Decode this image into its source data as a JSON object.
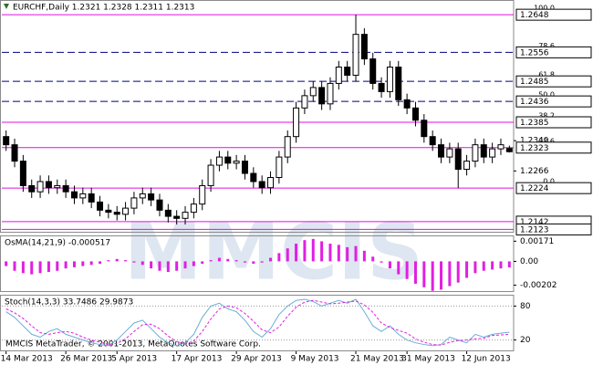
{
  "chart_data": [
    {
      "type": "candlestick",
      "title": "EURCHF,Daily 1.2321 1.2328 1.2311 1.2313",
      "up_color": "#ffffff",
      "down_color": "#000000",
      "open": [
        1.235,
        1.233,
        1.229,
        1.223,
        1.2215,
        1.224,
        1.2225,
        1.223,
        1.2215,
        1.22,
        1.221,
        1.219,
        1.217,
        1.2165,
        1.216,
        1.2175,
        1.22,
        1.221,
        1.2195,
        1.217,
        1.2155,
        1.215,
        1.2165,
        1.2185,
        1.223,
        1.228,
        1.23,
        1.2285,
        1.229,
        1.226,
        1.224,
        1.2225,
        1.225,
        1.23,
        1.235,
        1.242,
        1.245,
        1.247,
        1.243,
        1.248,
        1.252,
        1.25,
        1.26,
        1.254,
        1.248,
        1.246,
        1.252,
        1.244,
        1.242,
        1.239,
        1.235,
        1.233,
        1.23,
        1.232,
        1.227,
        1.229,
        1.233,
        1.23,
        1.232,
        1.2321
      ],
      "high": [
        1.2365,
        1.2345,
        1.2305,
        1.2245,
        1.2255,
        1.2255,
        1.2245,
        1.2245,
        1.223,
        1.2225,
        1.2225,
        1.2205,
        1.2185,
        1.218,
        1.219,
        1.2215,
        1.2225,
        1.2225,
        1.221,
        1.2185,
        1.217,
        1.218,
        1.22,
        1.2245,
        1.2295,
        1.2315,
        1.2315,
        1.2305,
        1.2305,
        1.2275,
        1.2255,
        1.2265,
        1.2315,
        1.2365,
        1.2435,
        1.2465,
        1.2485,
        1.2485,
        1.2495,
        1.2535,
        1.2535,
        1.2648,
        1.2615,
        1.2555,
        1.2495,
        1.2535,
        1.2535,
        1.2455,
        1.2435,
        1.2405,
        1.2365,
        1.2345,
        1.2335,
        1.2335,
        1.2305,
        1.2345,
        1.2345,
        1.2335,
        1.2345,
        1.2328
      ],
      "low": [
        1.2315,
        1.2275,
        1.2215,
        1.22,
        1.22,
        1.221,
        1.221,
        1.22,
        1.2185,
        1.2185,
        1.2175,
        1.2155,
        1.215,
        1.2145,
        1.2145,
        1.216,
        1.2185,
        1.218,
        1.2155,
        1.214,
        1.2135,
        1.2135,
        1.215,
        1.217,
        1.2215,
        1.2265,
        1.227,
        1.227,
        1.2245,
        1.2225,
        1.221,
        1.221,
        1.2235,
        1.2285,
        1.2335,
        1.2405,
        1.2435,
        1.2415,
        1.2415,
        1.2465,
        1.2485,
        1.2485,
        1.2525,
        1.2465,
        1.2445,
        1.2445,
        1.2425,
        1.2405,
        1.2375,
        1.2335,
        1.2315,
        1.2285,
        1.2285,
        1.2224,
        1.2255,
        1.2275,
        1.2285,
        1.2285,
        1.2305,
        1.2311
      ],
      "close": [
        1.233,
        1.229,
        1.223,
        1.2215,
        1.224,
        1.2225,
        1.223,
        1.2215,
        1.22,
        1.221,
        1.219,
        1.217,
        1.2165,
        1.216,
        1.2175,
        1.22,
        1.221,
        1.2195,
        1.217,
        1.2155,
        1.215,
        1.2165,
        1.2185,
        1.223,
        1.228,
        1.23,
        1.2285,
        1.229,
        1.226,
        1.224,
        1.2225,
        1.225,
        1.23,
        1.235,
        1.242,
        1.245,
        1.247,
        1.243,
        1.248,
        1.252,
        1.25,
        1.26,
        1.254,
        1.248,
        1.246,
        1.252,
        1.244,
        1.242,
        1.239,
        1.235,
        1.233,
        1.23,
        1.232,
        1.227,
        1.229,
        1.233,
        1.23,
        1.232,
        1.233,
        1.2313
      ],
      "levels": [
        {
          "price": 1.2648,
          "fib": "100.0",
          "color": "#e010e0",
          "dashed": false
        },
        {
          "price": 1.2556,
          "fib": "78.6",
          "color": "#000080",
          "dashed": true
        },
        {
          "price": 1.2485,
          "fib": "61.8",
          "color": "#000080",
          "dashed": true
        },
        {
          "price": 1.2436,
          "fib": "50.0",
          "color": "#000080",
          "dashed": true
        },
        {
          "price": 1.2385,
          "fib": "38.2",
          "color": "#e010e0",
          "dashed": false
        },
        {
          "price": 1.2323,
          "fib": "23.6",
          "color": "#e010e0",
          "dashed": false
        },
        {
          "price": 1.2224,
          "fib": "0.0",
          "color": "#e010e0",
          "dashed": false
        },
        {
          "price": 1.2142,
          "color": "#e010e0",
          "dashed": false
        },
        {
          "price": 1.2123,
          "color": "#e010e0",
          "dashed": false
        }
      ],
      "ylim": [
        1.2115,
        1.2684
      ],
      "yticks": [
        {
          "value": 1.234,
          "label": "1.2340"
        },
        1.2266
      ]
    },
    {
      "type": "histogram",
      "title": "OsMA(14,21,9) -0.000517",
      "color": "#e020e0",
      "values": [
        -0.0004,
        -0.0008,
        -0.001,
        -0.0011,
        -0.001,
        -0.0009,
        -0.0008,
        -0.0006,
        -0.0005,
        -0.0004,
        -0.0003,
        -0.0002,
        0.0001,
        0.0002,
        0.0001,
        -0.0001,
        -0.0003,
        -0.0006,
        -0.0008,
        -0.0009,
        -0.0008,
        -0.0006,
        -0.0004,
        -0.0002,
        0.0001,
        0.0003,
        0.0002,
        0.0001,
        -0.0001,
        -0.0002,
        -0.0001,
        0.0003,
        0.0007,
        0.0011,
        0.0015,
        0.0018,
        0.0019,
        0.0017,
        0.0015,
        0.0014,
        0.0012,
        0.0013,
        0.0009,
        0.0004,
        -0.0001,
        -0.0006,
        -0.0011,
        -0.0015,
        -0.0019,
        -0.0022,
        -0.0025,
        -0.0024,
        -0.0021,
        -0.0018,
        -0.0014,
        -0.001,
        -0.0008,
        -0.0007,
        -0.0006,
        -0.000517
      ],
      "ylim": [
        -0.0026,
        0.0022
      ],
      "yticks": [
        0.00171,
        {
          "value": 0,
          "label": "0.00"
        },
        -0.00202
      ]
    },
    {
      "type": "line",
      "title": "Stoch(14,3,3) 33.7486 29.9873",
      "grid": true,
      "categories": [
        "14 Mar 2013",
        null,
        null,
        null,
        null,
        null,
        null,
        "26 Mar 2013",
        null,
        null,
        null,
        null,
        null,
        "5 Apr 2013",
        null,
        null,
        null,
        null,
        null,
        null,
        "17 Apr 2013",
        null,
        null,
        null,
        null,
        null,
        null,
        "29 Apr 2013",
        null,
        null,
        null,
        null,
        null,
        null,
        "9 May 2013",
        null,
        null,
        null,
        null,
        null,
        null,
        "21 May 2013",
        null,
        null,
        null,
        null,
        null,
        "31 May 2013",
        null,
        null,
        null,
        null,
        null,
        null,
        "12 Jun 2013",
        null,
        null,
        null,
        null,
        null
      ],
      "series": [
        {
          "color": "#6aaed6",
          "dashed": false,
          "values": [
            70,
            60,
            45,
            30,
            25,
            35,
            40,
            30,
            25,
            20,
            15,
            12,
            10,
            20,
            35,
            50,
            55,
            40,
            25,
            15,
            10,
            15,
            30,
            60,
            80,
            85,
            75,
            70,
            55,
            35,
            25,
            40,
            65,
            80,
            90,
            92,
            88,
            80,
            85,
            90,
            85,
            92,
            70,
            45,
            35,
            45,
            30,
            20,
            15,
            12,
            10,
            12,
            25,
            20,
            15,
            30,
            25,
            30,
            32,
            33.7486
          ]
        },
        {
          "color": "#e020e0",
          "dashed": true,
          "values": [
            75,
            68,
            58,
            45,
            33,
            30,
            33,
            35,
            32,
            25,
            20,
            16,
            12,
            14,
            22,
            35,
            47,
            48,
            40,
            27,
            17,
            13,
            18,
            35,
            57,
            75,
            80,
            77,
            67,
            53,
            38,
            33,
            43,
            62,
            78,
            87,
            90,
            87,
            84,
            85,
            87,
            89,
            82,
            69,
            50,
            42,
            37,
            32,
            22,
            16,
            12,
            11,
            16,
            19,
            20,
            22,
            23,
            28,
            29,
            29.9873
          ]
        }
      ],
      "ylim": [
        0,
        100
      ],
      "yticks": [
        80,
        20
      ]
    }
  ],
  "watermark": "MMCIS",
  "footer": "MMCIS MetaTrader, © 2001-2013, MetaQuotes Software Corp."
}
